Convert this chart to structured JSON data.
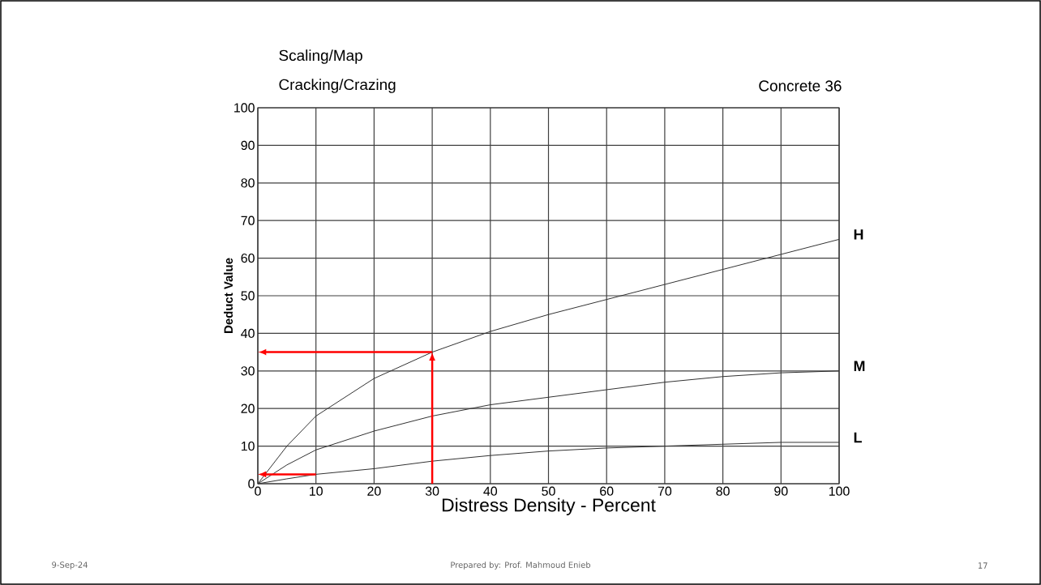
{
  "chart_data": {
    "type": "line",
    "title": "Scaling/Map",
    "subtitle": "Cracking/Crazing",
    "xlabel": "Distress Density - Percent",
    "ylabel": "Deduct Value",
    "annotations": [
      "Concrete 36",
      "9-Sep-24",
      "Prepared by: Prof. Mahmoud Enieb",
      "17"
    ],
    "x": [
      0,
      5,
      10,
      20,
      30,
      40,
      50,
      60,
      70,
      80,
      90,
      100
    ],
    "series": [
      {
        "name": "H",
        "color": "#333333",
        "values": [
          0,
          10,
          18,
          28,
          35,
          40.5,
          45,
          49,
          53,
          57,
          61,
          65
        ]
      },
      {
        "name": "M",
        "color": "#333333",
        "values": [
          0,
          5,
          9,
          14,
          18,
          21,
          23,
          25,
          27,
          28.5,
          29.5,
          30
        ]
      },
      {
        "name": "L",
        "color": "#333333",
        "values": [
          0,
          1.3,
          2.5,
          4,
          6,
          7.5,
          8.7,
          9.5,
          10,
          10.5,
          11,
          11
        ]
      }
    ],
    "xlim": [
      0,
      100
    ],
    "ylim": [
      0,
      100
    ],
    "xticks": [
      0,
      10,
      20,
      30,
      40,
      50,
      60,
      70,
      80,
      90,
      100
    ],
    "yticks": [
      0,
      10,
      20,
      30,
      40,
      50,
      60,
      70,
      80,
      90,
      100
    ],
    "grid": true,
    "legend": false,
    "marker": "none",
    "line_style": "solid"
  }
}
